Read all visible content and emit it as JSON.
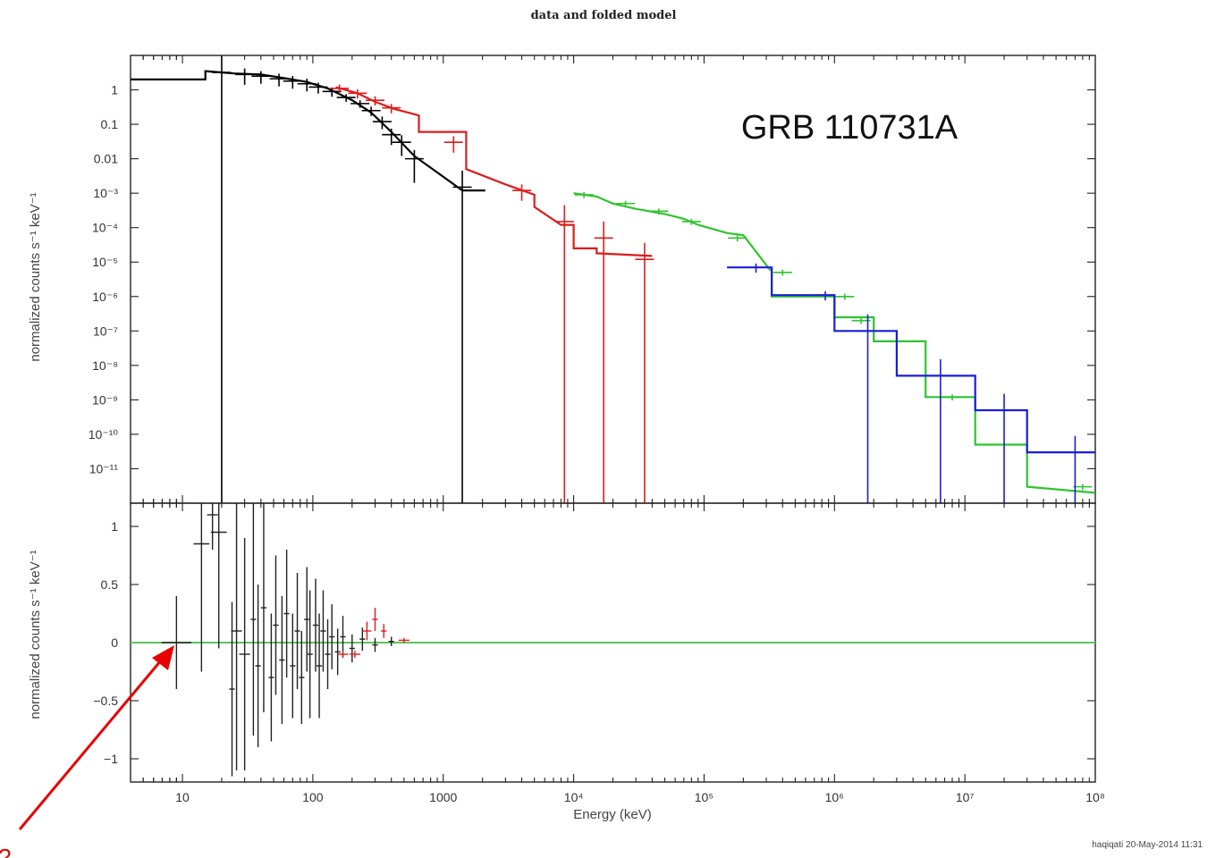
{
  "chart_data": [
    {
      "type": "line",
      "title": "data and folded model",
      "ylabel": "normalized counts s⁻¹ keV⁻¹",
      "xlabel": "",
      "xscale": "log",
      "yscale": "log",
      "xlim": [
        4,
        100000000
      ],
      "ylim": [
        1e-12,
        10
      ],
      "yticks": [
        {
          "v": 1,
          "label": "1"
        },
        {
          "v": 0.1,
          "label": "0.1"
        },
        {
          "v": 0.01,
          "label": "0.01"
        },
        {
          "v": 0.001,
          "label": "10⁻³"
        },
        {
          "v": 0.0001,
          "label": "10⁻⁴"
        },
        {
          "v": 1e-05,
          "label": "10⁻⁵"
        },
        {
          "v": 1e-06,
          "label": "10⁻⁶"
        },
        {
          "v": 1e-07,
          "label": "10⁻⁷"
        },
        {
          "v": 1e-08,
          "label": "10⁻⁸"
        },
        {
          "v": 1e-09,
          "label": "10⁻⁹"
        },
        {
          "v": 1e-10,
          "label": "10⁻¹⁰"
        },
        {
          "v": 1e-11,
          "label": "10⁻¹¹"
        }
      ],
      "annotation": "GRB 110731A",
      "series": [
        {
          "color": "#000000",
          "model": [
            [
              4,
              2
            ],
            [
              15,
              2
            ],
            [
              15,
              3.5
            ],
            [
              25,
              3
            ],
            [
              40,
              2.8
            ],
            [
              60,
              2.2
            ],
            [
              90,
              1.7
            ],
            [
              130,
              1.1
            ],
            [
              200,
              0.5
            ],
            [
              280,
              0.22
            ],
            [
              400,
              0.06
            ],
            [
              600,
              0.012
            ],
            [
              900,
              0.004
            ],
            [
              1400,
              0.0012
            ],
            [
              2100,
              0.0012
            ]
          ],
          "points": [
            [
              20,
              3.2,
              1
            ],
            [
              30,
              2.8,
              0.5
            ],
            [
              40,
              2.5,
              0.4
            ],
            [
              55,
              2.1,
              0.4
            ],
            [
              70,
              1.8,
              0.4
            ],
            [
              90,
              1.5,
              0.4
            ],
            [
              110,
              1.2,
              0.35
            ],
            [
              140,
              0.9,
              0.3
            ],
            [
              180,
              0.6,
              0.25
            ],
            [
              230,
              0.4,
              0.25
            ],
            [
              280,
              0.25,
              0.3
            ],
            [
              340,
              0.12,
              0.4
            ],
            [
              400,
              0.05,
              0.5
            ],
            [
              480,
              0.03,
              0.6
            ],
            [
              600,
              0.01,
              0.8
            ],
            [
              1400,
              0.0015,
              8
            ]
          ]
        },
        {
          "color": "#dd1c1c",
          "model": [
            [
              150,
              1.2
            ],
            [
              220,
              0.8
            ],
            [
              300,
              0.45
            ],
            [
              420,
              0.28
            ],
            [
              650,
              0.18
            ],
            [
              650,
              0.06
            ],
            [
              1500,
              0.06
            ],
            [
              1500,
              0.005
            ],
            [
              3000,
              0.0018
            ],
            [
              5000,
              0.0009
            ],
            [
              5000,
              0.0004
            ],
            [
              8000,
              0.00012
            ],
            [
              10000,
              0.00012
            ],
            [
              10000,
              2.5e-05
            ],
            [
              15000,
              2.5e-05
            ],
            [
              15000,
              1.8e-05
            ],
            [
              40000,
              1.5e-05
            ]
          ],
          "points": [
            [
              160,
              1.1,
              0.3
            ],
            [
              220,
              0.8,
              0.3
            ],
            [
              300,
              0.5,
              0.3
            ],
            [
              400,
              0.3,
              0.3
            ],
            [
              1200,
              0.03,
              0.5
            ],
            [
              4000,
              0.0012,
              0.5
            ],
            [
              8500,
              0.00015,
              12
            ],
            [
              17000,
              5e-05,
              12
            ],
            [
              35000,
              1.2e-05,
              12
            ]
          ]
        },
        {
          "color": "#2ec42e",
          "model": [
            [
              10000,
              0.001
            ],
            [
              15000,
              0.0008
            ],
            [
              20000,
              0.0005
            ],
            [
              30000,
              0.00035
            ],
            [
              50000,
              0.00025
            ],
            [
              70000,
              0.00018
            ],
            [
              90000,
              0.00012
            ],
            [
              150000,
              7e-05
            ],
            [
              200000,
              6e-05
            ],
            [
              320000,
              6e-06
            ],
            [
              330000,
              6e-06
            ],
            [
              330000,
              1e-06
            ],
            [
              1000000,
              1e-06
            ],
            [
              1000000,
              2.5e-07
            ],
            [
              2000000,
              2.5e-07
            ],
            [
              2000000,
              5e-08
            ],
            [
              5000000,
              5e-08
            ],
            [
              5000000,
              1.2e-09
            ],
            [
              12000000,
              1.2e-09
            ],
            [
              12000000,
              5e-11
            ],
            [
              30000000,
              5e-11
            ],
            [
              30000000,
              3e-12
            ],
            [
              100000000,
              2e-12
            ]
          ],
          "points": [
            [
              12000,
              0.0009,
              0.2
            ],
            [
              25000,
              0.0005,
              0.2
            ],
            [
              45000,
              0.0003,
              0.2
            ],
            [
              80000,
              0.00015,
              0.2
            ],
            [
              180000,
              5e-05,
              0.2
            ],
            [
              400000,
              5e-06,
              0.2
            ],
            [
              1200000,
              1e-06,
              0.2
            ],
            [
              1600000,
              2e-07,
              0.2
            ],
            [
              8000000,
              1.2e-09,
              0.2
            ],
            [
              80000000,
              3e-12,
              0.2
            ]
          ]
        },
        {
          "color": "#1c1cdd",
          "model": [
            [
              150000,
              7e-06
            ],
            [
              330000,
              7e-06
            ],
            [
              330000,
              1.1e-06
            ],
            [
              1000000,
              1.1e-06
            ],
            [
              1000000,
              1e-07
            ],
            [
              3000000,
              1e-07
            ],
            [
              3000000,
              5e-09
            ],
            [
              12000000,
              5e-09
            ],
            [
              12000000,
              5e-10
            ],
            [
              30000000,
              5e-10
            ],
            [
              30000000,
              3e-11
            ],
            [
              100000000,
              3e-11
            ]
          ],
          "points": [
            [
              250000,
              7e-06,
              0.3
            ],
            [
              850000,
              1.1e-06,
              0.3
            ],
            [
              1800000,
              1e-07,
              8
            ],
            [
              6500000,
              5e-09,
              8
            ],
            [
              20000000,
              5e-10,
              8
            ],
            [
              70000000,
              3e-11,
              8
            ]
          ]
        }
      ]
    },
    {
      "type": "scatter",
      "xlabel": "Energy (keV)",
      "ylabel": "normalized counts s⁻¹ keV⁻¹",
      "xscale": "log",
      "xlim": [
        4,
        100000000
      ],
      "ylim": [
        -1.2,
        1.2
      ],
      "yticks": [
        {
          "v": 1,
          "label": "1"
        },
        {
          "v": 0.5,
          "label": "0.5"
        },
        {
          "v": 0,
          "label": "0"
        },
        {
          "v": -0.5,
          "label": "−0.5"
        },
        {
          "v": -1,
          "label": "−1"
        }
      ],
      "xticks": [
        {
          "v": 10,
          "label": "10"
        },
        {
          "v": 100,
          "label": "100"
        },
        {
          "v": 1000,
          "label": "1000"
        },
        {
          "v": 10000,
          "label": "10⁴"
        },
        {
          "v": 100000,
          "label": "10⁵"
        },
        {
          "v": 1000000,
          "label": "10⁶"
        },
        {
          "v": 10000000,
          "label": "10⁷"
        },
        {
          "v": 100000000,
          "label": "10⁸"
        }
      ],
      "zero_line_color": "#5cc45c",
      "series": [
        {
          "color": "#222222",
          "points": [
            [
              9,
              0,
              0.3,
              0.4
            ],
            [
              14,
              0.85,
              0.15,
              1.1
            ],
            [
              17,
              1.1,
              0.1,
              0.3
            ],
            [
              19,
              0.95,
              0.15,
              1.0
            ],
            [
              24,
              -0.4,
              0.05,
              0.75
            ],
            [
              26,
              0.1,
              0.1,
              1.2
            ],
            [
              30,
              -0.1,
              0.1,
              1.0
            ],
            [
              35,
              0.2,
              0.05,
              1.0
            ],
            [
              38,
              -0.2,
              0.05,
              0.7
            ],
            [
              42,
              0.3,
              0.05,
              0.9
            ],
            [
              48,
              -0.3,
              0.05,
              0.55
            ],
            [
              52,
              0.15,
              0.05,
              0.6
            ],
            [
              58,
              -0.15,
              0.05,
              0.55
            ],
            [
              63,
              0.25,
              0.05,
              0.55
            ],
            [
              70,
              -0.2,
              0.05,
              0.45
            ],
            [
              76,
              0.1,
              0.05,
              0.5
            ],
            [
              82,
              -0.3,
              0.05,
              0.4
            ],
            [
              90,
              0.2,
              0.05,
              0.45
            ],
            [
              95,
              -0.1,
              0.05,
              0.55
            ],
            [
              105,
              0.15,
              0.05,
              0.4
            ],
            [
              112,
              -0.2,
              0.05,
              0.45
            ],
            [
              120,
              0.1,
              0.05,
              0.35
            ],
            [
              130,
              -0.1,
              0.05,
              0.3
            ],
            [
              140,
              0.05,
              0.05,
              0.28
            ],
            [
              155,
              -0.08,
              0.05,
              0.2
            ],
            [
              170,
              0.05,
              0.05,
              0.18
            ],
            [
              200,
              -0.05,
              0.05,
              0.12
            ],
            [
              240,
              0.03,
              0.05,
              0.1
            ],
            [
              300,
              -0.02,
              0.05,
              0.06
            ],
            [
              400,
              0.01,
              0.05,
              0.04
            ]
          ]
        },
        {
          "color": "#dd1c1c",
          "points": [
            [
              170,
              -0.1,
              0.1,
              0.03
            ],
            [
              210,
              -0.1,
              0.1,
              0.03
            ],
            [
              260,
              0.1,
              0.08,
              0.08
            ],
            [
              300,
              0.2,
              0.05,
              0.1
            ],
            [
              350,
              0.1,
              0.05,
              0.06
            ],
            [
              500,
              0.02,
              0.1,
              0.02
            ]
          ]
        }
      ]
    }
  ],
  "footer": {
    "timestamp": "haqiqati 20-May-2014 11:31",
    "question_mark": "?"
  }
}
